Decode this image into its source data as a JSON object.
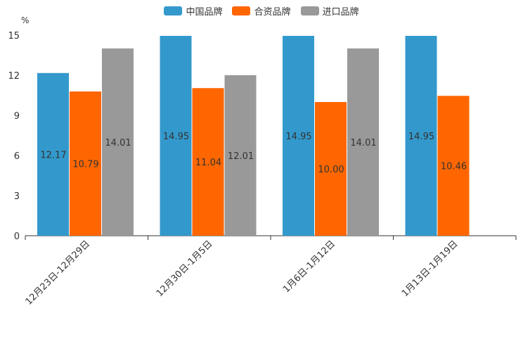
{
  "chart_data": {
    "type": "bar",
    "title": "",
    "ylabel": "%",
    "xlabel": "",
    "ylim": [
      0,
      15
    ],
    "yticks": [
      0,
      3,
      6,
      9,
      12,
      15
    ],
    "categories": [
      "12月23日-12月29日",
      "12月30日-1月5日",
      "1月6日-1月12日",
      "1月13日-1月19日"
    ],
    "series": [
      {
        "name": "中国品牌",
        "color": "#3399cc",
        "values": [
          12.17,
          14.95,
          14.95,
          14.95
        ]
      },
      {
        "name": "合资品牌",
        "color": "#ff6600",
        "values": [
          10.79,
          11.04,
          10.0,
          10.46
        ]
      },
      {
        "name": "进口品牌",
        "color": "#999999",
        "values": [
          14.01,
          12.01,
          14.01,
          null
        ]
      }
    ],
    "data_labels": [
      [
        "12.17",
        "14.95",
        "14.95",
        "14.95"
      ],
      [
        "10.79",
        "11.04",
        "10.00",
        "10.46"
      ],
      [
        "14.01",
        "12.01",
        "14.01",
        null
      ]
    ],
    "legend_position": "top-center"
  }
}
